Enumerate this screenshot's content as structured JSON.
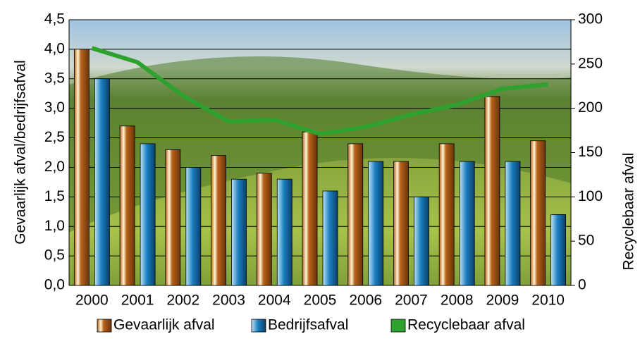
{
  "chart_data": {
    "type": "bar",
    "categories": [
      "2000",
      "2001",
      "2002",
      "2003",
      "2004",
      "2005",
      "2006",
      "2007",
      "2008",
      "2009",
      "2010"
    ],
    "ylabel": "Gevaarlijk afval/bedrijfsafval",
    "y2label": "Recyclebaar afval",
    "ylim": [
      0,
      4.5
    ],
    "yticks": [
      {
        "value": 0,
        "label": "0,0"
      },
      {
        "value": 0.5,
        "label": "0,5"
      },
      {
        "value": 1,
        "label": "1,0"
      },
      {
        "value": 1.5,
        "label": "1,5"
      },
      {
        "value": 2,
        "label": "2,0"
      },
      {
        "value": 2.5,
        "label": "2,5"
      },
      {
        "value": 3,
        "label": "3,0"
      },
      {
        "value": 3.5,
        "label": "3,5"
      },
      {
        "value": 4,
        "label": "4,0"
      },
      {
        "value": 4.5,
        "label": "4,5"
      }
    ],
    "y2lim": [
      0,
      300
    ],
    "y2ticks": [
      0,
      50,
      100,
      150,
      200,
      250,
      300
    ],
    "grid": true,
    "legend": "bottom",
    "series": [
      {
        "name": "Gevaarlijk afval",
        "color": "#b8621b",
        "type": "bar",
        "values": [
          4.0,
          2.7,
          2.3,
          2.2,
          1.9,
          2.6,
          2.4,
          2.1,
          2.4,
          3.2,
          2.45
        ]
      },
      {
        "name": "Bedrijfsafval",
        "color": "#1a7fc0",
        "type": "bar",
        "values": [
          3.5,
          2.4,
          2.0,
          1.8,
          1.8,
          1.6,
          2.1,
          1.5,
          2.1,
          2.1,
          1.2
        ]
      },
      {
        "name": "Recyclebaar afval",
        "color": "#2ea12e",
        "type": "line",
        "axis": "y2",
        "values": [
          268,
          252,
          214,
          185,
          187,
          171,
          179,
          193,
          204,
          222,
          227
        ]
      }
    ]
  }
}
